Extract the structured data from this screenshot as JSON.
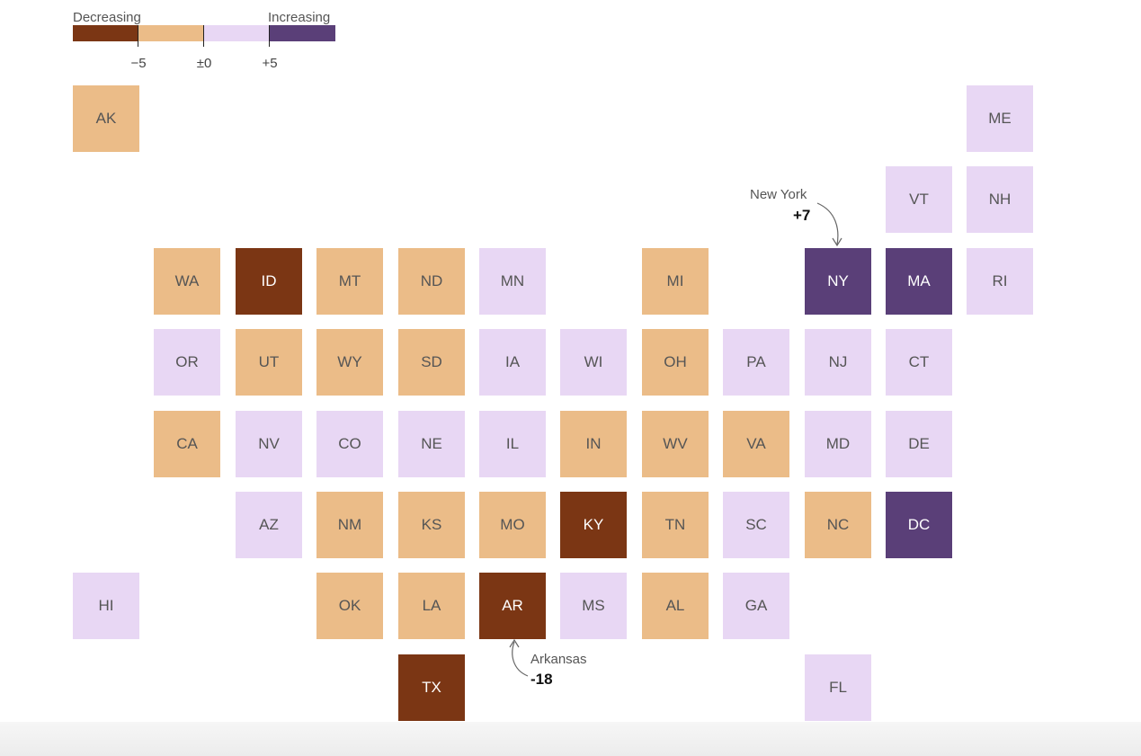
{
  "legend": {
    "decreasing_label": "Decreasing",
    "increasing_label": "Increasing",
    "ticks": [
      "−5",
      "±0",
      "+5"
    ],
    "bins": [
      {
        "name": "strong-decrease",
        "color": "#7b3614"
      },
      {
        "name": "decrease",
        "color": "#ebbc88"
      },
      {
        "name": "increase",
        "color": "#e8d7f4"
      },
      {
        "name": "strong-increase",
        "color": "#5a3f78"
      }
    ]
  },
  "states": [
    {
      "abbr": "AK",
      "row": 0,
      "col": 0,
      "bin": 1
    },
    {
      "abbr": "ME",
      "row": 0,
      "col": 11,
      "bin": 2
    },
    {
      "abbr": "VT",
      "row": 1,
      "col": 10,
      "bin": 2
    },
    {
      "abbr": "NH",
      "row": 1,
      "col": 11,
      "bin": 2
    },
    {
      "abbr": "WA",
      "row": 2,
      "col": 1,
      "bin": 1
    },
    {
      "abbr": "ID",
      "row": 2,
      "col": 2,
      "bin": 0
    },
    {
      "abbr": "MT",
      "row": 2,
      "col": 3,
      "bin": 1
    },
    {
      "abbr": "ND",
      "row": 2,
      "col": 4,
      "bin": 1
    },
    {
      "abbr": "MN",
      "row": 2,
      "col": 5,
      "bin": 2
    },
    {
      "abbr": "MI",
      "row": 2,
      "col": 7,
      "bin": 1
    },
    {
      "abbr": "NY",
      "row": 2,
      "col": 9,
      "bin": 3
    },
    {
      "abbr": "MA",
      "row": 2,
      "col": 10,
      "bin": 3
    },
    {
      "abbr": "RI",
      "row": 2,
      "col": 11,
      "bin": 2
    },
    {
      "abbr": "OR",
      "row": 3,
      "col": 1,
      "bin": 2
    },
    {
      "abbr": "UT",
      "row": 3,
      "col": 2,
      "bin": 1
    },
    {
      "abbr": "WY",
      "row": 3,
      "col": 3,
      "bin": 1
    },
    {
      "abbr": "SD",
      "row": 3,
      "col": 4,
      "bin": 1
    },
    {
      "abbr": "IA",
      "row": 3,
      "col": 5,
      "bin": 2
    },
    {
      "abbr": "WI",
      "row": 3,
      "col": 6,
      "bin": 2
    },
    {
      "abbr": "OH",
      "row": 3,
      "col": 7,
      "bin": 1
    },
    {
      "abbr": "PA",
      "row": 3,
      "col": 8,
      "bin": 2
    },
    {
      "abbr": "NJ",
      "row": 3,
      "col": 9,
      "bin": 2
    },
    {
      "abbr": "CT",
      "row": 3,
      "col": 10,
      "bin": 2
    },
    {
      "abbr": "CA",
      "row": 4,
      "col": 1,
      "bin": 1
    },
    {
      "abbr": "NV",
      "row": 4,
      "col": 2,
      "bin": 2
    },
    {
      "abbr": "CO",
      "row": 4,
      "col": 3,
      "bin": 2
    },
    {
      "abbr": "NE",
      "row": 4,
      "col": 4,
      "bin": 2
    },
    {
      "abbr": "IL",
      "row": 4,
      "col": 5,
      "bin": 2
    },
    {
      "abbr": "IN",
      "row": 4,
      "col": 6,
      "bin": 1
    },
    {
      "abbr": "WV",
      "row": 4,
      "col": 7,
      "bin": 1
    },
    {
      "abbr": "VA",
      "row": 4,
      "col": 8,
      "bin": 1
    },
    {
      "abbr": "MD",
      "row": 4,
      "col": 9,
      "bin": 2
    },
    {
      "abbr": "DE",
      "row": 4,
      "col": 10,
      "bin": 2
    },
    {
      "abbr": "AZ",
      "row": 5,
      "col": 2,
      "bin": 2
    },
    {
      "abbr": "NM",
      "row": 5,
      "col": 3,
      "bin": 1
    },
    {
      "abbr": "KS",
      "row": 5,
      "col": 4,
      "bin": 1
    },
    {
      "abbr": "MO",
      "row": 5,
      "col": 5,
      "bin": 1
    },
    {
      "abbr": "KY",
      "row": 5,
      "col": 6,
      "bin": 0
    },
    {
      "abbr": "TN",
      "row": 5,
      "col": 7,
      "bin": 1
    },
    {
      "abbr": "SC",
      "row": 5,
      "col": 8,
      "bin": 2
    },
    {
      "abbr": "NC",
      "row": 5,
      "col": 9,
      "bin": 1
    },
    {
      "abbr": "DC",
      "row": 5,
      "col": 10,
      "bin": 3
    },
    {
      "abbr": "HI",
      "row": 6,
      "col": 0,
      "bin": 2
    },
    {
      "abbr": "OK",
      "row": 6,
      "col": 3,
      "bin": 1
    },
    {
      "abbr": "LA",
      "row": 6,
      "col": 4,
      "bin": 1
    },
    {
      "abbr": "AR",
      "row": 6,
      "col": 5,
      "bin": 0
    },
    {
      "abbr": "MS",
      "row": 6,
      "col": 6,
      "bin": 2
    },
    {
      "abbr": "AL",
      "row": 6,
      "col": 7,
      "bin": 1
    },
    {
      "abbr": "GA",
      "row": 6,
      "col": 8,
      "bin": 2
    },
    {
      "abbr": "TX",
      "row": 7,
      "col": 4,
      "bin": 0
    },
    {
      "abbr": "FL",
      "row": 7,
      "col": 9,
      "bin": 2
    }
  ],
  "annotations": {
    "new_york": {
      "name": "New York",
      "value": "+7"
    },
    "arkansas": {
      "name": "Arkansas",
      "value": "-18"
    }
  }
}
